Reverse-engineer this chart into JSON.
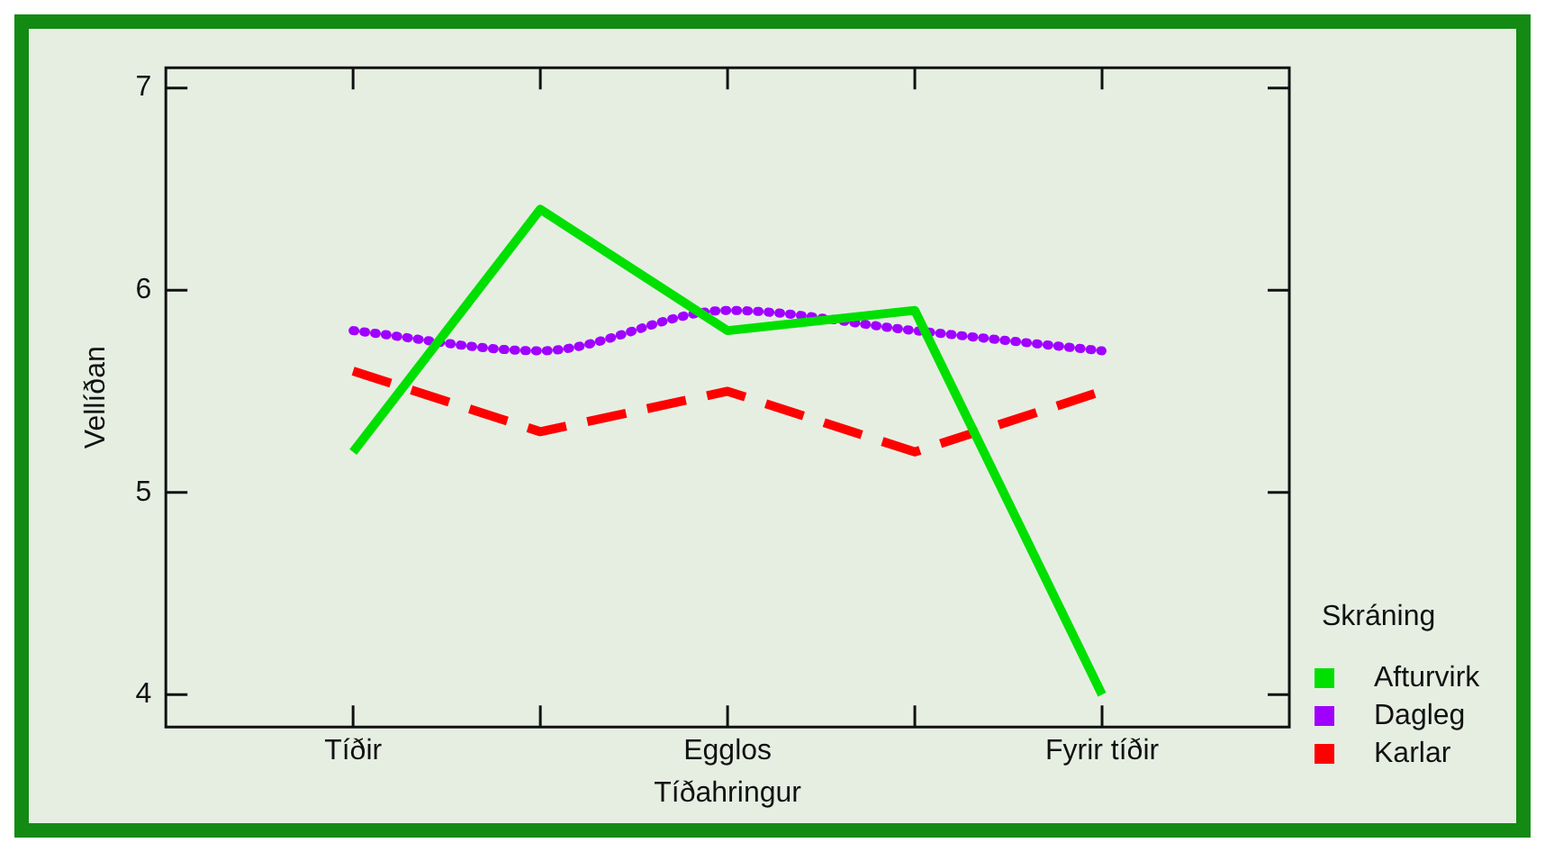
{
  "chart_data": {
    "type": "line",
    "xlabel": "Tíðahringur",
    "ylabel": "Vellíðan",
    "legend_title": "Skráning",
    "legend": "right",
    "categories": [
      "Tíðir",
      null,
      "Egglos",
      null,
      "Fyrir tíðir"
    ],
    "ylim": [
      3.84,
      7.1
    ],
    "yticks": [
      4,
      5,
      6,
      7
    ],
    "series": [
      {
        "name": "Afturvirk",
        "color": "#00e000",
        "values": [
          5.2,
          6.4,
          5.8,
          5.9,
          4.0
        ],
        "line_style": "solid"
      },
      {
        "name": "Dagleg",
        "color": "#a000ff",
        "values": [
          5.8,
          5.7,
          5.9,
          5.8,
          5.7
        ],
        "line_style": "dotted"
      },
      {
        "name": "Karlar",
        "color": "#ff0000",
        "values": [
          5.6,
          5.3,
          5.5,
          5.2,
          5.5
        ],
        "line_style": "dashed"
      }
    ]
  }
}
